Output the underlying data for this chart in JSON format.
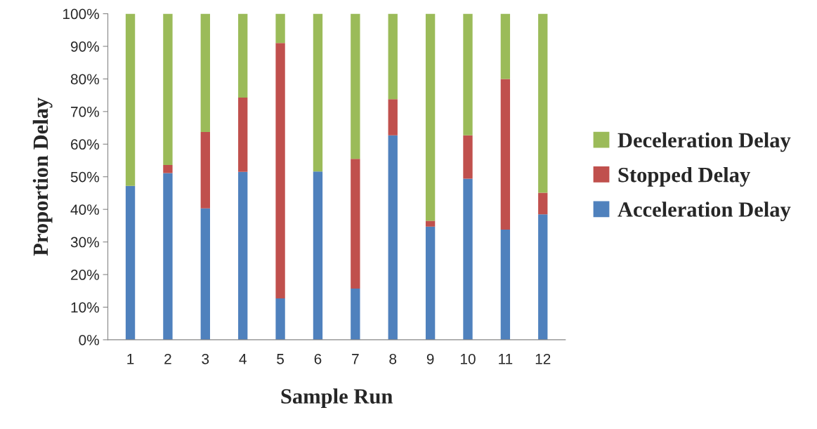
{
  "chart_data": {
    "type": "bar",
    "stacked": true,
    "xlabel": "Sample Run",
    "ylabel": "Proportion Delay",
    "categories": [
      "1",
      "2",
      "3",
      "4",
      "5",
      "6",
      "7",
      "8",
      "9",
      "10",
      "11",
      "12"
    ],
    "series": [
      {
        "name": "Acceleration Delay",
        "color": "#4f81bd",
        "values": [
          47.2,
          51.1,
          40.3,
          51.5,
          12.7,
          51.6,
          15.7,
          62.7,
          34.7,
          49.4,
          33.8,
          38.5
        ]
      },
      {
        "name": "Stopped Delay",
        "color": "#c0504d",
        "values": [
          0,
          2.5,
          23.4,
          22.8,
          78.3,
          0,
          39.8,
          11.1,
          1.8,
          13.3,
          46.2,
          6.6
        ]
      },
      {
        "name": "Deceleration Delay",
        "color": "#9bbb59",
        "values": [
          52.8,
          46.4,
          36.3,
          25.7,
          9.0,
          48.4,
          44.5,
          26.2,
          63.5,
          37.3,
          20.0,
          54.9
        ]
      }
    ],
    "ylim": [
      0,
      100
    ],
    "yticks": [
      {
        "value": 0,
        "label": "0%"
      },
      {
        "value": 10,
        "label": "10%"
      },
      {
        "value": 20,
        "label": "20%"
      },
      {
        "value": 30,
        "label": "30%"
      },
      {
        "value": 40,
        "label": "40%"
      },
      {
        "value": 50,
        "label": "50%"
      },
      {
        "value": 60,
        "label": "60%"
      },
      {
        "value": 70,
        "label": "70%"
      },
      {
        "value": 80,
        "label": "80%"
      },
      {
        "value": 90,
        "label": "90%"
      },
      {
        "value": 100,
        "label": "100%"
      }
    ],
    "grid": false,
    "legend": "right"
  }
}
